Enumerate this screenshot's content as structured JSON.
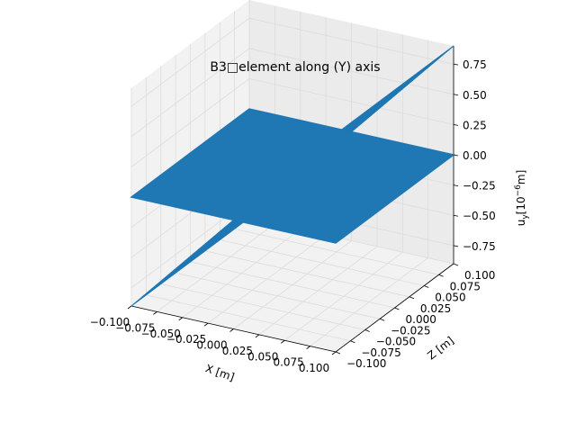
{
  "chart_data": {
    "type": "surface3d",
    "title": "B3□element along (Y) axis",
    "xlabel": "X [m]",
    "ylabel": "Z [m]",
    "zlabel": "u_y [10^{-6} m]",
    "zlabel_parts": {
      "base": "u",
      "sub": "y",
      "pre": "[10",
      "sup": "−6",
      "post": "m]"
    },
    "xlim": [
      -0.1,
      0.1
    ],
    "ylim": [
      -0.1,
      0.1
    ],
    "zlim": [
      -0.9,
      0.9
    ],
    "x_ticks": [
      "−0.100",
      "−0.075",
      "−0.050",
      "−0.025",
      "0.000",
      "0.025",
      "0.050",
      "0.075",
      "0.100"
    ],
    "y_ticks": [
      "−0.100",
      "−0.075",
      "−0.050",
      "−0.025",
      "0.000",
      "0.025",
      "0.050",
      "0.075",
      "0.100"
    ],
    "z_ticks": [
      "−0.75",
      "−0.50",
      "−0.25",
      "0.00",
      "0.25",
      "0.50",
      "0.75"
    ],
    "grid": true,
    "series": [
      {
        "kind": "wireframe",
        "color": "#1f77b4",
        "z_at_x_min": -0.9,
        "z_at_x_max": 0.9,
        "grid_lines": 41
      },
      {
        "kind": "surface",
        "color": "#1f77b4",
        "z": 0
      }
    ]
  }
}
